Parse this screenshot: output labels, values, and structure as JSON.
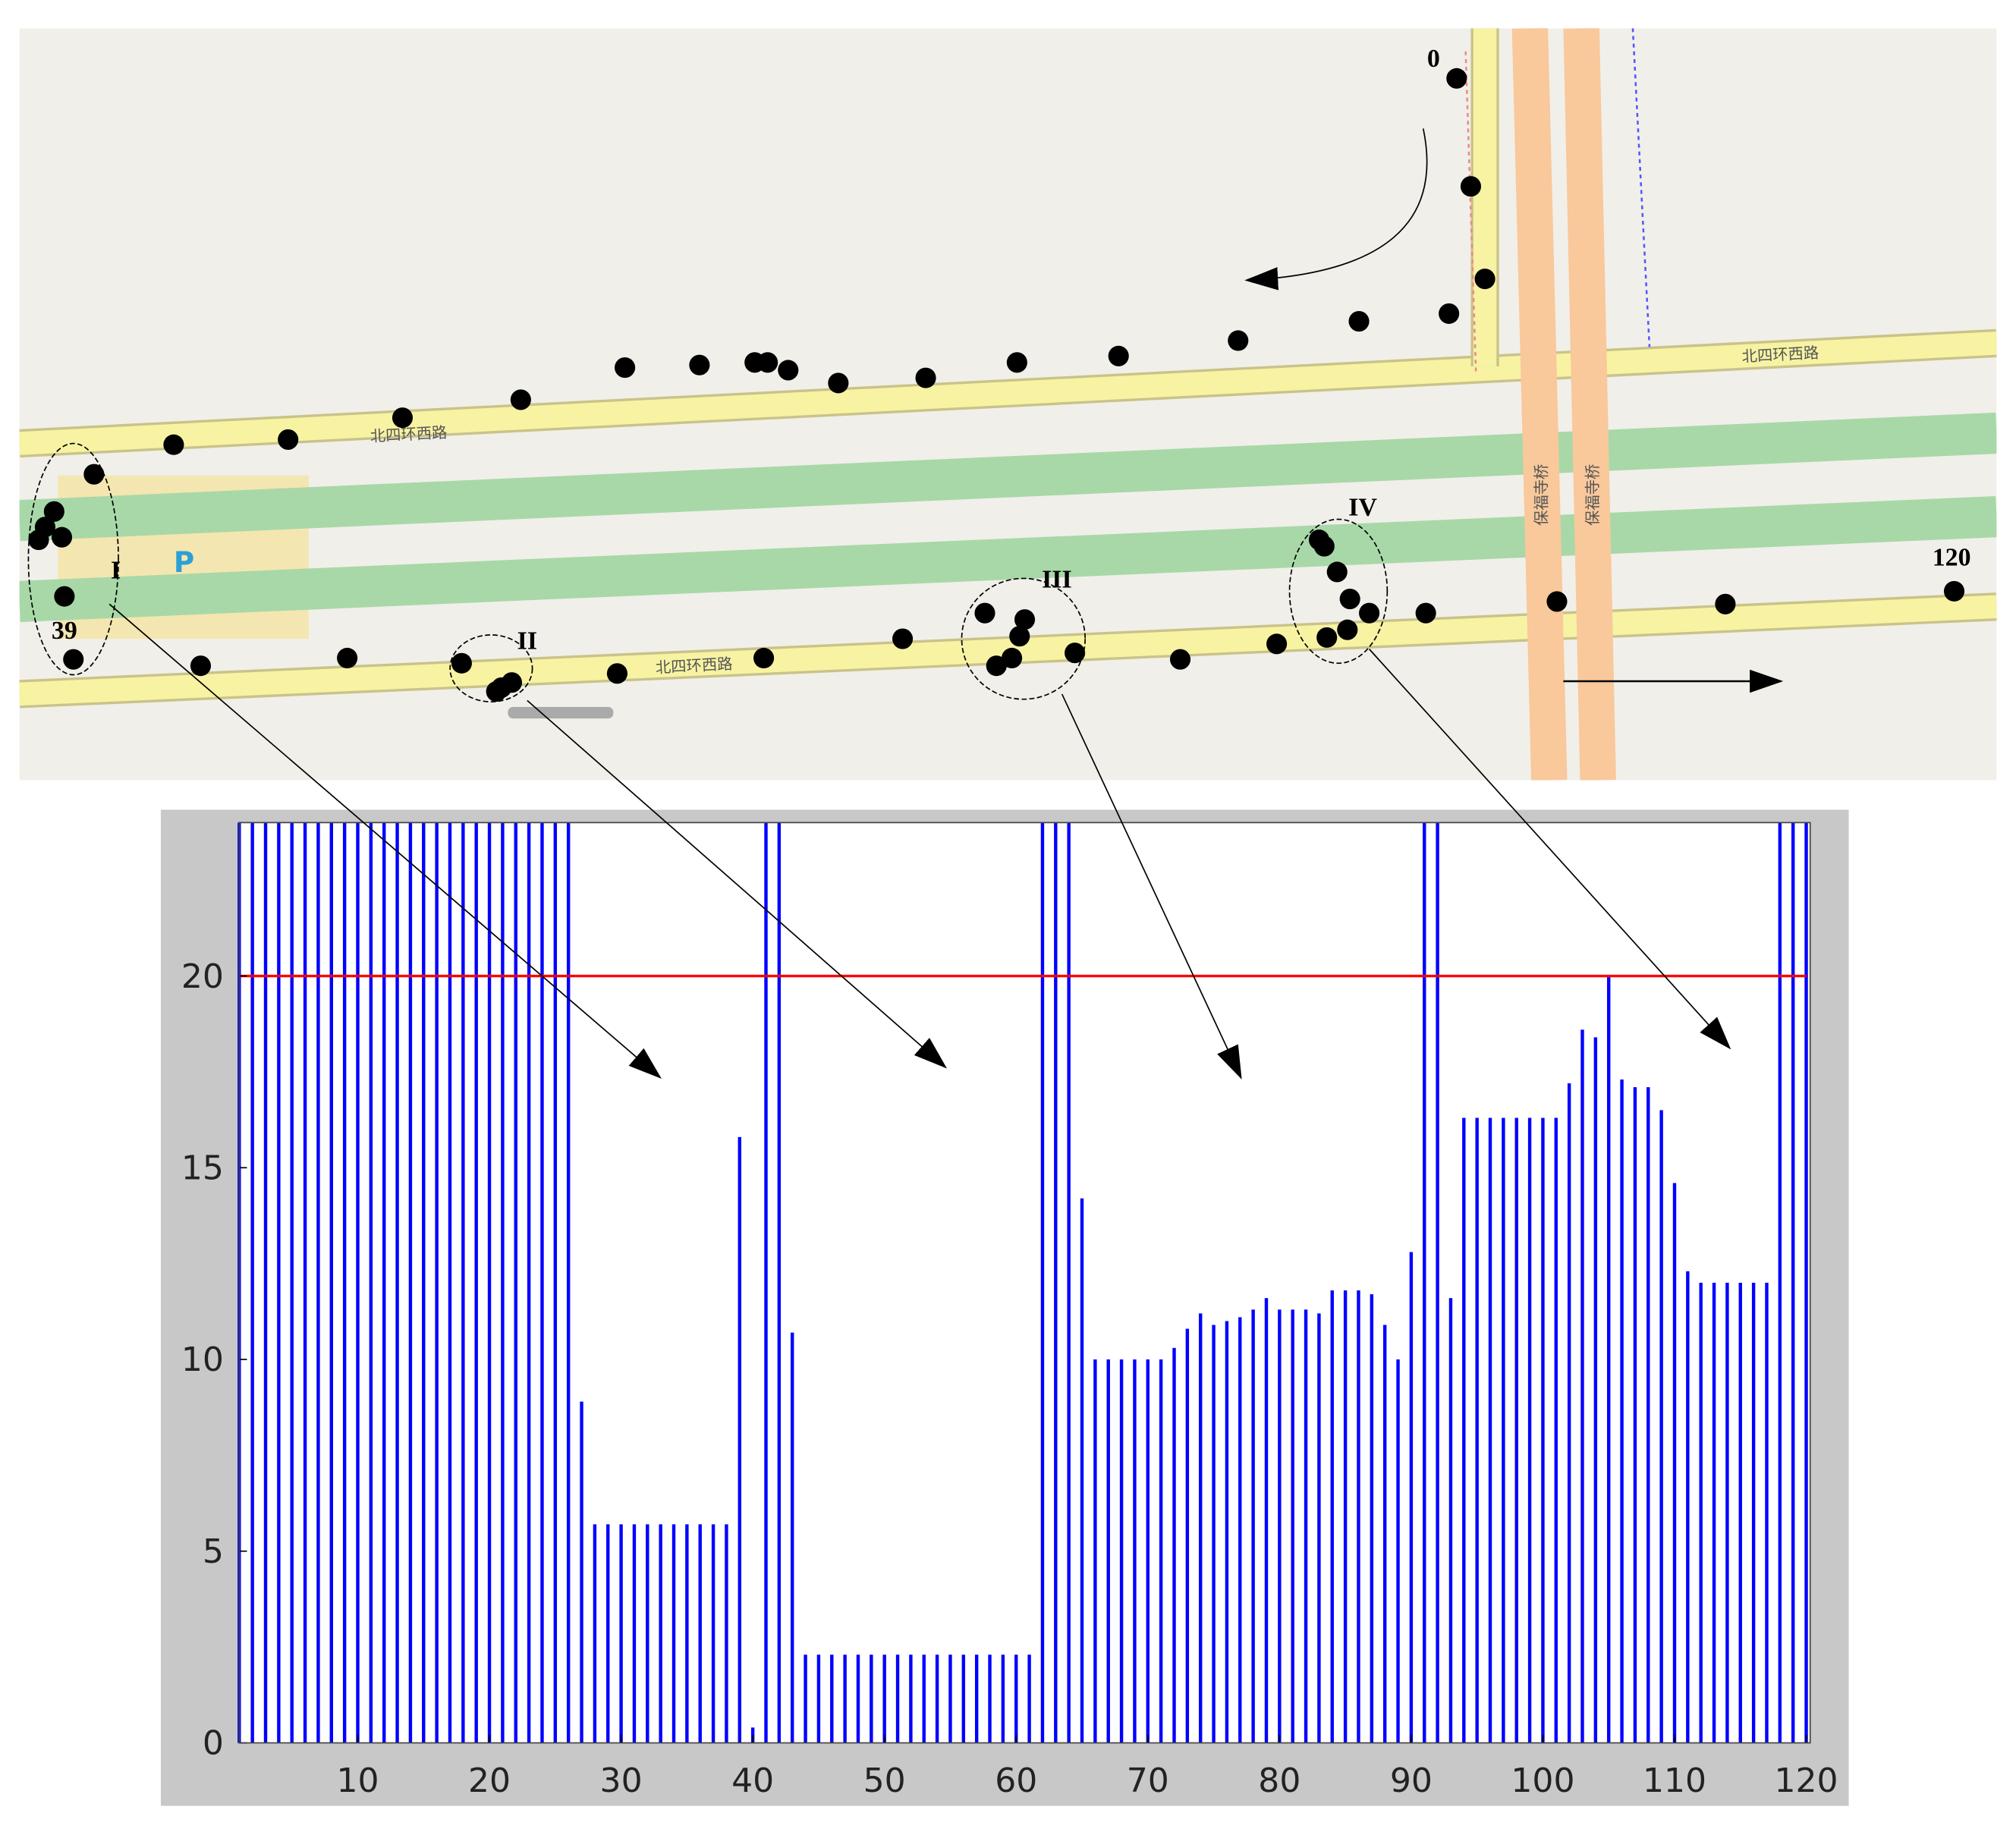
{
  "map": {
    "point_labels": [
      "0",
      "39",
      "120"
    ],
    "cluster_labels": [
      "I",
      "II",
      "III",
      "IV"
    ],
    "road_labels": [
      "北四环西路",
      "北四环西路",
      "北四环西路",
      "保福寺桥",
      "保福寺桥"
    ]
  },
  "chart_data": {
    "type": "bar",
    "color": "#0000ff",
    "x": [
      1,
      2,
      3,
      4,
      5,
      6,
      7,
      8,
      9,
      10,
      11,
      12,
      13,
      14,
      15,
      16,
      17,
      18,
      19,
      20,
      21,
      22,
      23,
      24,
      25,
      26,
      27,
      28,
      29,
      30,
      31,
      32,
      33,
      34,
      35,
      36,
      37,
      38,
      39,
      40,
      41,
      42,
      43,
      44,
      45,
      46,
      47,
      48,
      49,
      50,
      51,
      52,
      53,
      54,
      55,
      56,
      57,
      58,
      59,
      60,
      61,
      62,
      63,
      64,
      65,
      66,
      67,
      68,
      69,
      70,
      71,
      72,
      73,
      74,
      75,
      76,
      77,
      78,
      79,
      80,
      81,
      82,
      83,
      84,
      85,
      86,
      87,
      88,
      89,
      90,
      91,
      92,
      93,
      94,
      95,
      96,
      97,
      98,
      99,
      100,
      101,
      102,
      103,
      104,
      105,
      106,
      107,
      108,
      109,
      110,
      111,
      112,
      113,
      114,
      115,
      116,
      117,
      118,
      119,
      120
    ],
    "values": [
      24,
      24,
      24,
      24,
      24,
      24,
      24,
      24,
      24,
      24,
      24,
      24,
      24,
      24,
      24,
      24,
      24,
      24,
      24,
      24,
      24,
      24,
      24,
      24,
      24,
      24,
      8.9,
      5.7,
      5.7,
      5.7,
      5.7,
      5.7,
      5.7,
      5.7,
      5.7,
      5.7,
      5.7,
      5.7,
      15.8,
      0.4,
      24,
      24,
      10.7,
      2.3,
      2.3,
      2.3,
      2.3,
      2.3,
      2.3,
      2.3,
      2.3,
      2.3,
      2.3,
      2.3,
      2.3,
      2.3,
      2.3,
      2.3,
      2.3,
      2.3,
      2.3,
      24,
      24,
      24,
      14.2,
      10,
      10,
      10,
      10,
      10,
      10,
      10.3,
      10.8,
      11.2,
      10.9,
      11,
      11.1,
      11.3,
      11.6,
      11.3,
      11.3,
      11.3,
      11.2,
      11.8,
      11.8,
      11.8,
      11.7,
      10.9,
      10,
      12.8,
      24,
      24,
      11.6,
      16.3,
      16.3,
      16.3,
      16.3,
      16.3,
      16.3,
      16.3,
      16.3,
      17.2,
      18.6,
      18.4,
      20,
      17.3,
      17.1,
      17.1,
      16.5,
      14.6,
      12.3,
      12,
      12,
      12,
      12,
      12,
      12,
      24,
      24,
      24
    ],
    "xlim": [
      1,
      120.3
    ],
    "ylim": [
      0,
      24
    ],
    "xticks": [
      10,
      20,
      30,
      40,
      50,
      60,
      70,
      80,
      90,
      100,
      110,
      120
    ],
    "yticks": [
      0,
      5,
      10,
      15,
      20
    ],
    "threshold": 20,
    "threshold_color": "#ff0000",
    "grid": false
  }
}
